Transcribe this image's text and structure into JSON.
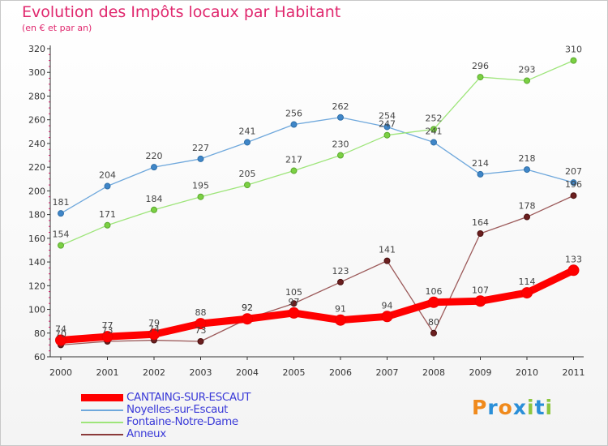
{
  "header": {
    "title": "Evolution des Impôts locaux par Habitant",
    "subtitle": "(en € et par an)"
  },
  "logo": {
    "letters": [
      "P",
      "r",
      "o",
      "x",
      "i",
      "t",
      "i"
    ],
    "colors": [
      "#f08a1c",
      "#2a8fd8",
      "#f08a1c",
      "#2a8fd8",
      "#8dc63f",
      "#2a8fd8",
      "#8dc63f"
    ]
  },
  "chart_data": {
    "type": "line",
    "title": "Evolution des Impôts locaux par Habitant",
    "subtitle": "(en € et par an)",
    "x": [
      "2000",
      "2001",
      "2002",
      "2003",
      "2004",
      "2005",
      "2006",
      "2007",
      "2008",
      "2009",
      "2010",
      "2011"
    ],
    "ylim": [
      60,
      320
    ],
    "yticks": [
      "60",
      "80",
      "100",
      "120",
      "140",
      "160",
      "180",
      "200",
      "220",
      "240",
      "260",
      "280",
      "300",
      "320"
    ],
    "grid": false,
    "legend_position": "bottom-left",
    "series": [
      {
        "name": "CANTAING-SUR-ESCAUT",
        "color": "#ff0000",
        "values": [
          74,
          77,
          79,
          88,
          92,
          97,
          91,
          94,
          106,
          107,
          114,
          133
        ],
        "labels": [
          "74",
          "77",
          "79",
          "88",
          "92",
          "97",
          "91",
          "94",
          "106",
          "107",
          "114",
          "133"
        ]
      },
      {
        "name": "Noyelles-sur-Escaut",
        "color": "#6fa8dc",
        "values": [
          181,
          204,
          220,
          227,
          241,
          256,
          262,
          254,
          241,
          214,
          218,
          207
        ],
        "labels": [
          "181",
          "204",
          "220",
          "227",
          "241",
          "256",
          "262",
          "254",
          "241",
          "214",
          "218",
          "207"
        ]
      },
      {
        "name": "Fontaine-Notre-Dame",
        "color": "#9ee57a",
        "values": [
          154,
          171,
          184,
          195,
          205,
          217,
          230,
          247,
          252,
          296,
          293,
          310
        ],
        "labels": [
          "154",
          "171",
          "184",
          "195",
          "205",
          "217",
          "230",
          "247",
          "252",
          "296",
          "293",
          "310"
        ]
      },
      {
        "name": "Anneux",
        "color": "#8b3a3a",
        "values": [
          70,
          73,
          74,
          73,
          92,
          105,
          123,
          141,
          80,
          164,
          178,
          196
        ],
        "labels": [
          "70",
          "73",
          "74",
          "73",
          "92",
          "105",
          "123",
          "141",
          "80",
          "164",
          "178",
          "196"
        ]
      }
    ]
  }
}
